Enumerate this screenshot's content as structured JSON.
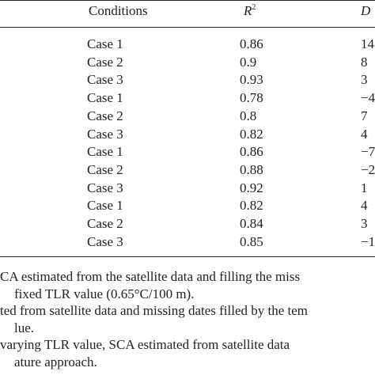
{
  "table": {
    "header": [
      "Conditions",
      {
        "text": "R",
        "sup": "2"
      },
      "D"
    ],
    "rows": [
      [
        "Case 1",
        "0.86",
        "14"
      ],
      [
        "Case 2",
        "0.9",
        "8"
      ],
      [
        "Case 3",
        "0.93",
        "3"
      ],
      [
        "Case 1",
        "0.78",
        "−4"
      ],
      [
        "Case 2",
        "0.8",
        "7"
      ],
      [
        "Case 3",
        "0.82",
        "4"
      ],
      [
        "Case 1",
        "0.86",
        "−7"
      ],
      [
        "Case 2",
        "0.88",
        "−2"
      ],
      [
        "Case 3",
        "0.92",
        "1"
      ],
      [
        "Case 1",
        "0.82",
        "4"
      ],
      [
        "Case 2",
        "0.84",
        "3"
      ],
      [
        "Case 3",
        "0.85",
        "−1"
      ]
    ],
    "footnotes": [
      "CA estimated from the satellite data and filling the miss",
      "fixed TLR value (0.65°C/100 m).",
      "ted from satellite data and missing dates filled by the tem",
      "lue.",
      "varying TLR value, SCA estimated from satellite data",
      "ature approach."
    ]
  }
}
